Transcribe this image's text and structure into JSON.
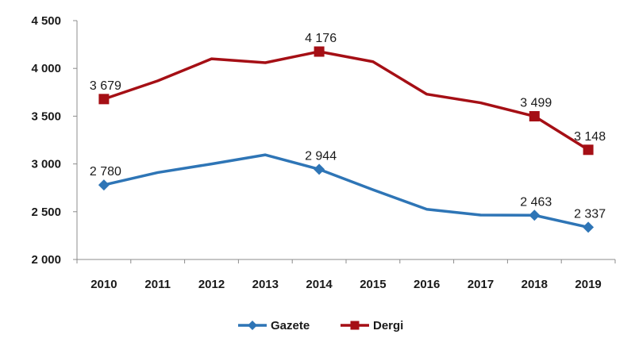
{
  "chart_data": {
    "type": "line",
    "categories": [
      "2010",
      "2011",
      "2012",
      "2013",
      "2014",
      "2015",
      "2016",
      "2017",
      "2018",
      "2019"
    ],
    "yticks": [
      "2 000",
      "2 500",
      "3 000",
      "3 500",
      "4 000",
      "4 500"
    ],
    "ylim": [
      2000,
      4500
    ],
    "ytick_step": 500,
    "grid": false,
    "legend_position": "bottom",
    "series": [
      {
        "name": "Gazete",
        "color": "#2e75b6",
        "marker": "diamond",
        "values": [
          2780,
          2910,
          3000,
          3095,
          2944,
          2730,
          2525,
          2465,
          2463,
          2337
        ],
        "labels": [
          {
            "index": 0,
            "text": "2 780"
          },
          {
            "index": 4,
            "text": "2 944"
          },
          {
            "index": 8,
            "text": "2 463"
          },
          {
            "index": 9,
            "text": "2 337"
          }
        ]
      },
      {
        "name": "Dergi",
        "color": "#a50f15",
        "marker": "square",
        "values": [
          3679,
          3870,
          4100,
          4060,
          4176,
          4070,
          3730,
          3640,
          3499,
          3148
        ],
        "labels": [
          {
            "index": 0,
            "text": "3 679"
          },
          {
            "index": 4,
            "text": "4 176"
          },
          {
            "index": 8,
            "text": "3 499"
          },
          {
            "index": 9,
            "text": "3 148"
          }
        ]
      }
    ]
  }
}
